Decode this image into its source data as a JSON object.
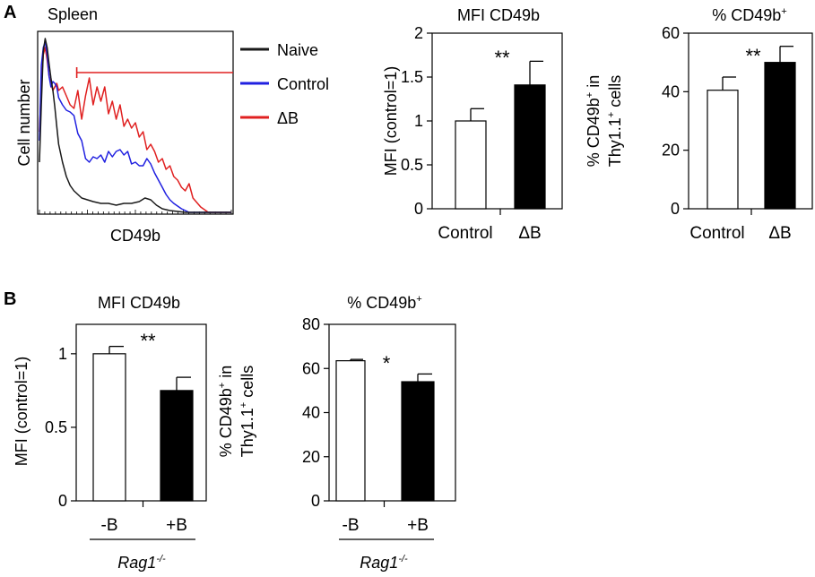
{
  "colors": {
    "naive": "#1a1a1a",
    "control": "#2020e0",
    "deltaB": "#e02020",
    "axis": "#000000",
    "bar_open": "#ffffff",
    "bar_filled": "#000000"
  },
  "panels": {
    "A": "A",
    "B": "B"
  },
  "histogram": {
    "title": "Spleen",
    "ylabel": "Cell number",
    "xlabel": "CD49b",
    "gate_fraction": [
      0.2,
      1.0
    ],
    "legend": [
      {
        "label": "Naive",
        "series": "naive"
      },
      {
        "label": "Control",
        "series": "control"
      },
      {
        "label": "ΔB",
        "series": "deltaB"
      }
    ]
  },
  "chart_data": [
    {
      "id": "histogram",
      "type": "line",
      "title": "Spleen",
      "xlabel": "CD49b",
      "ylabel": "Cell number",
      "xlim": [
        0,
        100
      ],
      "ylim": [
        0,
        100
      ],
      "series": [
        {
          "name": "Naive",
          "color_key": "naive",
          "x": [
            0,
            1,
            2,
            3,
            4,
            5,
            6,
            7,
            8,
            9,
            10,
            12,
            14,
            16,
            18,
            20,
            22,
            25,
            28,
            32,
            36,
            40,
            44,
            48,
            52,
            55,
            58,
            61,
            64,
            68,
            72,
            76,
            80,
            88,
            100
          ],
          "y": [
            28,
            60,
            90,
            97,
            92,
            83,
            75,
            68,
            59,
            48,
            38,
            28,
            20,
            15,
            12,
            10,
            8,
            7,
            6,
            5,
            5,
            4,
            5,
            5,
            6,
            8,
            7,
            4,
            2,
            1,
            0.5,
            0,
            0,
            0,
            0
          ]
        },
        {
          "name": "Control",
          "color_key": "control",
          "x": [
            0,
            1,
            2,
            3,
            4,
            5,
            6,
            7,
            8,
            9,
            10,
            12,
            14,
            16,
            18,
            20,
            22,
            24,
            26,
            28,
            30,
            32,
            34,
            36,
            38,
            40,
            42,
            44,
            46,
            48,
            50,
            52,
            54,
            56,
            58,
            60,
            62,
            64,
            66,
            68,
            70,
            74,
            78,
            85,
            100
          ],
          "y": [
            40,
            82,
            92,
            95,
            88,
            76,
            70,
            73,
            72,
            70,
            64,
            60,
            57,
            56,
            54,
            44,
            40,
            30,
            28,
            31,
            30,
            32,
            28,
            34,
            31,
            34,
            35,
            32,
            34,
            27,
            28,
            26,
            26,
            30,
            27,
            22,
            18,
            14,
            10,
            7,
            5,
            2,
            0,
            0,
            0
          ]
        },
        {
          "name": "ΔB",
          "color_key": "deltaB",
          "x": [
            0,
            1,
            2,
            3,
            4,
            5,
            6,
            7,
            8,
            9,
            10,
            12,
            14,
            16,
            18,
            20,
            22,
            24,
            26,
            28,
            30,
            32,
            34,
            36,
            38,
            40,
            42,
            44,
            46,
            48,
            50,
            52,
            54,
            56,
            58,
            60,
            62,
            64,
            66,
            68,
            70,
            72,
            74,
            76,
            78,
            80,
            84,
            88,
            100
          ],
          "y": [
            45,
            72,
            88,
            92,
            85,
            76,
            72,
            68,
            70,
            72,
            68,
            70,
            65,
            60,
            58,
            68,
            52,
            65,
            75,
            60,
            70,
            62,
            70,
            55,
            62,
            52,
            60,
            48,
            52,
            47,
            50,
            42,
            45,
            35,
            38,
            34,
            28,
            30,
            24,
            26,
            20,
            18,
            14,
            12,
            16,
            8,
            3,
            0,
            0
          ]
        }
      ]
    },
    {
      "id": "A-mfi",
      "type": "bar",
      "title": "MFI CD49b",
      "ylabel": "MFI (control=1)",
      "categories": [
        "Control",
        "ΔB"
      ],
      "values": [
        1.0,
        1.41
      ],
      "errors": [
        0.14,
        0.27
      ],
      "fills": [
        "bar_open",
        "bar_filled"
      ],
      "ylim": [
        0,
        2
      ],
      "yticks": [
        0,
        0.5,
        1,
        1.5,
        2
      ],
      "ytick_labels": [
        "0",
        "0.5",
        "1",
        "1.5",
        "2"
      ],
      "significance": "**"
    },
    {
      "id": "A-pct",
      "type": "bar",
      "title": "% CD49b",
      "title_sup": "+",
      "ylabel_lines": [
        {
          "text": "% CD49b",
          "sup": "+",
          "tail": " in"
        },
        {
          "text": "Thy1.1",
          "sup": "+",
          "tail": " cells"
        }
      ],
      "categories": [
        "Control",
        "ΔB"
      ],
      "values": [
        40.5,
        50.0
      ],
      "errors": [
        4.5,
        5.5
      ],
      "fills": [
        "bar_open",
        "bar_filled"
      ],
      "ylim": [
        0,
        60
      ],
      "yticks": [
        0,
        20,
        40,
        60
      ],
      "ytick_labels": [
        "0",
        "20",
        "40",
        "60"
      ],
      "significance": "**"
    },
    {
      "id": "B-mfi",
      "type": "bar",
      "title": "MFI CD49b",
      "ylabel": "MFI (control=1)",
      "categories": [
        "-B",
        "+B"
      ],
      "values": [
        1.0,
        0.75
      ],
      "errors": [
        0.05,
        0.09
      ],
      "fills": [
        "bar_open",
        "bar_filled"
      ],
      "ylim": [
        0,
        1.2
      ],
      "yticks": [
        0,
        0.5,
        1
      ],
      "ytick_labels": [
        "0",
        "0.5",
        "1"
      ],
      "significance": "**",
      "group_label": "Rag1",
      "group_label_sup": "-/-"
    },
    {
      "id": "B-pct",
      "type": "bar",
      "title": "% CD49b",
      "title_sup": "+",
      "ylabel_lines": [
        {
          "text": "% CD49b",
          "sup": "+",
          "tail": " in"
        },
        {
          "text": "Thy1.1",
          "sup": "+",
          "tail": " cells"
        }
      ],
      "categories": [
        "-B",
        "+B"
      ],
      "values": [
        63.5,
        54.0
      ],
      "errors": [
        0.6,
        3.5
      ],
      "fills": [
        "bar_open",
        "bar_filled"
      ],
      "ylim": [
        0,
        80
      ],
      "yticks": [
        0,
        20,
        40,
        60,
        80
      ],
      "ytick_labels": [
        "0",
        "20",
        "40",
        "60",
        "80"
      ],
      "significance": "*",
      "group_label": "Rag1",
      "group_label_sup": "-/-"
    }
  ]
}
